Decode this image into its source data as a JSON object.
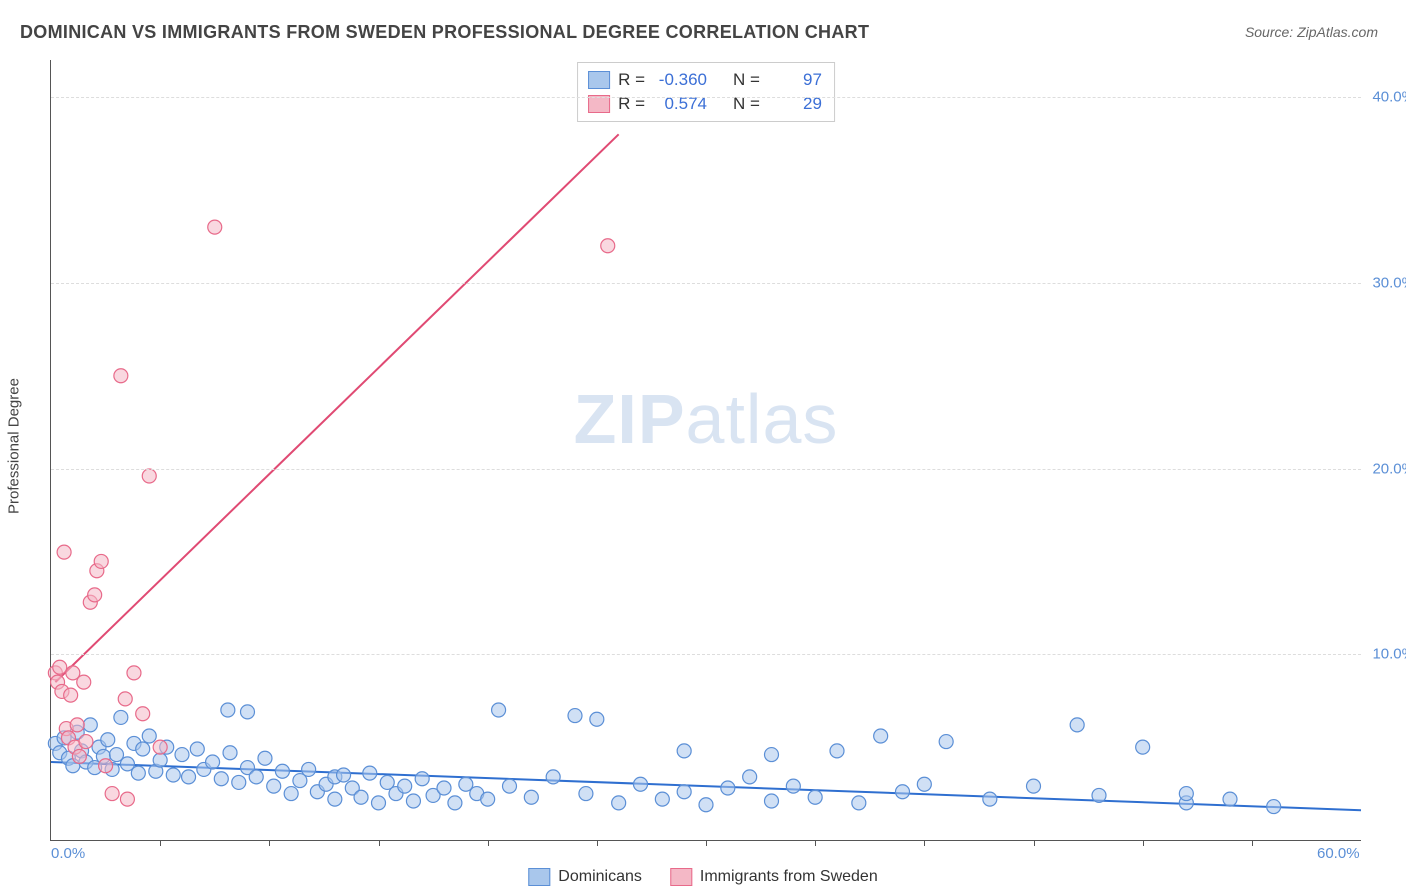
{
  "title": "DOMINICAN VS IMMIGRANTS FROM SWEDEN PROFESSIONAL DEGREE CORRELATION CHART",
  "source_label": "Source: ",
  "source_value": "ZipAtlas.com",
  "ylabel": "Professional Degree",
  "watermark": {
    "bold": "ZIP",
    "rest": "atlas"
  },
  "chart": {
    "type": "scatter-with-trend",
    "xlim": [
      0,
      60
    ],
    "ylim": [
      0,
      42
    ],
    "x_ticks_major": [
      0,
      60
    ],
    "x_ticks_minor_step": 5,
    "y_gridlines": [
      10,
      20,
      30,
      40
    ],
    "y_tick_labels": [
      "10.0%",
      "20.0%",
      "30.0%",
      "40.0%"
    ],
    "x_tick_labels": {
      "0": "0.0%",
      "60": "60.0%"
    },
    "background_color": "#ffffff",
    "grid_color": "#dddddd",
    "marker_radius": 7,
    "marker_stroke_width": 1.2,
    "trend_width": 2,
    "label_fontsize": 15,
    "axis_label_color": "#5b8fd6",
    "series": [
      {
        "name": "Dominicans",
        "fill": "#a9c7ec",
        "stroke": "#5b8fd6",
        "fill_opacity": 0.55,
        "trend_color": "#2f6fd0",
        "trend": {
          "x1": 0,
          "y1": 4.2,
          "x2": 60,
          "y2": 1.6
        },
        "R": "-0.360",
        "N": "97",
        "points": [
          [
            0.2,
            5.2
          ],
          [
            0.4,
            4.7
          ],
          [
            0.6,
            5.5
          ],
          [
            0.8,
            4.4
          ],
          [
            1.0,
            4.0
          ],
          [
            1.2,
            5.8
          ],
          [
            1.4,
            4.8
          ],
          [
            1.6,
            4.2
          ],
          [
            1.8,
            6.2
          ],
          [
            2.0,
            3.9
          ],
          [
            2.2,
            5.0
          ],
          [
            2.4,
            4.5
          ],
          [
            2.6,
            5.4
          ],
          [
            2.8,
            3.8
          ],
          [
            3.0,
            4.6
          ],
          [
            3.2,
            6.6
          ],
          [
            3.5,
            4.1
          ],
          [
            3.8,
            5.2
          ],
          [
            4.0,
            3.6
          ],
          [
            4.2,
            4.9
          ],
          [
            4.5,
            5.6
          ],
          [
            4.8,
            3.7
          ],
          [
            5.0,
            4.3
          ],
          [
            5.3,
            5.0
          ],
          [
            5.6,
            3.5
          ],
          [
            6.0,
            4.6
          ],
          [
            6.3,
            3.4
          ],
          [
            6.7,
            4.9
          ],
          [
            7.0,
            3.8
          ],
          [
            7.4,
            4.2
          ],
          [
            7.8,
            3.3
          ],
          [
            8.1,
            7.0
          ],
          [
            8.2,
            4.7
          ],
          [
            8.6,
            3.1
          ],
          [
            9.0,
            3.9
          ],
          [
            9.0,
            6.9
          ],
          [
            9.4,
            3.4
          ],
          [
            9.8,
            4.4
          ],
          [
            10.2,
            2.9
          ],
          [
            10.6,
            3.7
          ],
          [
            11.0,
            2.5
          ],
          [
            11.4,
            3.2
          ],
          [
            11.8,
            3.8
          ],
          [
            12.2,
            2.6
          ],
          [
            12.6,
            3.0
          ],
          [
            13.0,
            2.2
          ],
          [
            13.0,
            3.4
          ],
          [
            13.4,
            3.5
          ],
          [
            13.8,
            2.8
          ],
          [
            14.2,
            2.3
          ],
          [
            14.6,
            3.6
          ],
          [
            15.0,
            2.0
          ],
          [
            15.4,
            3.1
          ],
          [
            15.8,
            2.5
          ],
          [
            16.2,
            2.9
          ],
          [
            16.6,
            2.1
          ],
          [
            17.0,
            3.3
          ],
          [
            17.5,
            2.4
          ],
          [
            18.0,
            2.8
          ],
          [
            18.5,
            2.0
          ],
          [
            19.0,
            3.0
          ],
          [
            19.5,
            2.5
          ],
          [
            20.0,
            2.2
          ],
          [
            20.5,
            7.0
          ],
          [
            21.0,
            2.9
          ],
          [
            22.0,
            2.3
          ],
          [
            23.0,
            3.4
          ],
          [
            24.0,
            6.7
          ],
          [
            24.5,
            2.5
          ],
          [
            25.0,
            6.5
          ],
          [
            26.0,
            2.0
          ],
          [
            27.0,
            3.0
          ],
          [
            28.0,
            2.2
          ],
          [
            29.0,
            2.6
          ],
          [
            29.0,
            4.8
          ],
          [
            30.0,
            1.9
          ],
          [
            31.0,
            2.8
          ],
          [
            32.0,
            3.4
          ],
          [
            33.0,
            2.1
          ],
          [
            33.0,
            4.6
          ],
          [
            34.0,
            2.9
          ],
          [
            35.0,
            2.3
          ],
          [
            36.0,
            4.8
          ],
          [
            37.0,
            2.0
          ],
          [
            38.0,
            5.6
          ],
          [
            39.0,
            2.6
          ],
          [
            40.0,
            3.0
          ],
          [
            41.0,
            5.3
          ],
          [
            43.0,
            2.2
          ],
          [
            45.0,
            2.9
          ],
          [
            47.0,
            6.2
          ],
          [
            48.0,
            2.4
          ],
          [
            50.0,
            5.0
          ],
          [
            52.0,
            2.0
          ],
          [
            52.0,
            2.5
          ],
          [
            54.0,
            2.2
          ],
          [
            56.0,
            1.8
          ]
        ]
      },
      {
        "name": "Immigrants from Sweden",
        "fill": "#f4b8c6",
        "stroke": "#e86a8a",
        "fill_opacity": 0.55,
        "trend_color": "#e04a73",
        "trend": {
          "x1": 0.2,
          "y1": 8.5,
          "x2": 26,
          "y2": 38
        },
        "R": "0.574",
        "N": "29",
        "points": [
          [
            0.2,
            9.0
          ],
          [
            0.3,
            8.5
          ],
          [
            0.4,
            9.3
          ],
          [
            0.5,
            8.0
          ],
          [
            0.6,
            15.5
          ],
          [
            0.7,
            6.0
          ],
          [
            0.8,
            5.5
          ],
          [
            0.9,
            7.8
          ],
          [
            1.0,
            9.0
          ],
          [
            1.1,
            5.0
          ],
          [
            1.2,
            6.2
          ],
          [
            1.3,
            4.5
          ],
          [
            1.5,
            8.5
          ],
          [
            1.6,
            5.3
          ],
          [
            1.8,
            12.8
          ],
          [
            2.0,
            13.2
          ],
          [
            2.1,
            14.5
          ],
          [
            2.3,
            15.0
          ],
          [
            2.5,
            4.0
          ],
          [
            2.8,
            2.5
          ],
          [
            3.2,
            25.0
          ],
          [
            3.4,
            7.6
          ],
          [
            3.5,
            2.2
          ],
          [
            3.8,
            9.0
          ],
          [
            4.2,
            6.8
          ],
          [
            4.5,
            19.6
          ],
          [
            5.0,
            5.0
          ],
          [
            7.5,
            33.0
          ],
          [
            25.5,
            32.0
          ]
        ]
      }
    ]
  },
  "stats_box": {
    "rows": [
      {
        "swatch_fill": "#a9c7ec",
        "swatch_stroke": "#5b8fd6",
        "r_label": "R =",
        "r_val": "-0.360",
        "n_label": "N =",
        "n_val": "97"
      },
      {
        "swatch_fill": "#f4b8c6",
        "swatch_stroke": "#e86a8a",
        "r_label": "R =",
        "r_val": "0.574",
        "n_label": "N =",
        "n_val": "29"
      }
    ]
  },
  "legend": [
    {
      "swatch_fill": "#a9c7ec",
      "swatch_stroke": "#5b8fd6",
      "label": "Dominicans"
    },
    {
      "swatch_fill": "#f4b8c6",
      "swatch_stroke": "#e86a8a",
      "label": "Immigrants from Sweden"
    }
  ]
}
